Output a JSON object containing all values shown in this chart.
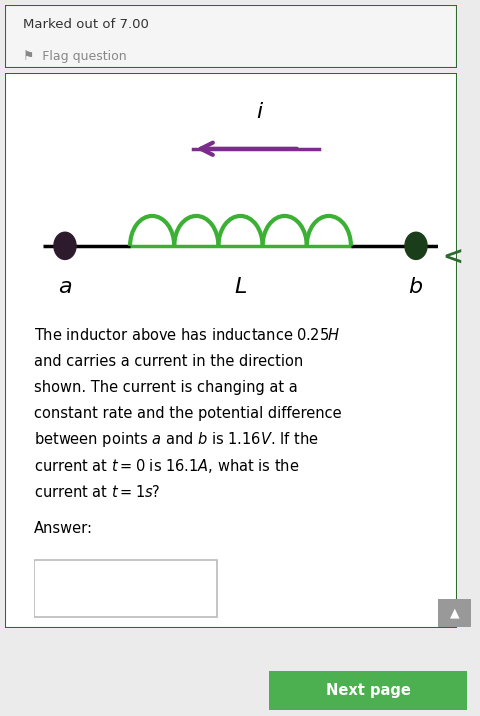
{
  "outer_bg": "#ebebeb",
  "header_text": "Marked out of 7.00",
  "flag_text": "Flag question",
  "flag_icon": "⚑",
  "border_color": "#2d6a2d",
  "card_bg": "#ffffff",
  "header_bg": "#f5f5f5",
  "inductor_color": "#3cb034",
  "wire_color": "#000000",
  "arrow_color": "#7b2d8b",
  "dot_left_color": "#2d1a2d",
  "dot_right_color": "#1a3d1a",
  "label_color": "#000000",
  "body_line1": "The inductor above has inductance $0.25H$",
  "body_line2": "and carries a current in the direction",
  "body_line3": "shown. The current is changing at a",
  "body_line4": "constant rate and the potential difference",
  "body_line5": "between points $a$ and $b$ is $1.16V$. If the",
  "body_line6": "current at $t=0$ is $16.1A$, what is the",
  "body_line7": "current at $t=1s$?",
  "answer_label": "Answer:",
  "next_page_text": "Next page",
  "next_page_color": "#4caf50",
  "nav_arrow": "<",
  "scroll_color": "#999999"
}
